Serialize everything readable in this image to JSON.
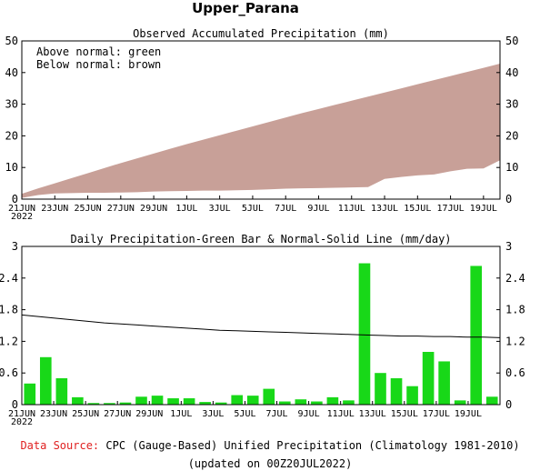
{
  "page": {
    "title": "Upper_Parana"
  },
  "colors": {
    "above_normal": "#18b818",
    "below_normal": "#c8a098",
    "bar": "#18d818",
    "normal_line": "#000000",
    "source_label": "#e02020"
  },
  "footer": {
    "source_label": "Data Source:",
    "source_text": "CPC (Gauge-Based) Unified Precipitation (Climatology 1981-2010)",
    "updated": "(updated on 00Z20JUL2022)"
  },
  "chart_data": [
    {
      "type": "area",
      "title": "Observed Accumulated Precipitation (mm)",
      "legend": [
        "Above normal: green",
        "Below normal: brown"
      ],
      "legend_position": "top-left",
      "ylim": [
        0,
        50
      ],
      "yticks": [
        0,
        10,
        20,
        30,
        40,
        50
      ],
      "x_tick_labels": [
        "21JUN",
        "23JUN",
        "25JUN",
        "27JUN",
        "29JUN",
        "1JUL",
        "3JUL",
        "5JUL",
        "7JUL",
        "9JUL",
        "11JUL",
        "13JUL",
        "15JUL",
        "17JUL",
        "19JUL"
      ],
      "x_year_label": "2022",
      "grid": false,
      "series": [
        {
          "name": "Normal",
          "values": [
            1.7,
            3.4,
            5.0,
            6.6,
            8.2,
            9.8,
            11.4,
            12.9,
            14.4,
            15.9,
            17.4,
            18.8,
            20.2,
            21.6,
            23.0,
            24.4,
            25.8,
            27.2,
            28.5,
            29.8,
            31.1,
            32.4,
            33.7,
            35.0,
            36.3,
            37.6,
            38.9,
            40.2,
            41.5,
            42.8
          ]
        },
        {
          "name": "Observed",
          "values": [
            0.4,
            1.3,
            1.8,
            1.9,
            2.0,
            2.0,
            2.1,
            2.2,
            2.4,
            2.5,
            2.6,
            2.7,
            2.7,
            2.8,
            2.9,
            3.1,
            3.3,
            3.4,
            3.5,
            3.6,
            3.7,
            3.8,
            6.4,
            7.0,
            7.5,
            7.8,
            8.8,
            9.6,
            9.7,
            12.3
          ]
        }
      ]
    },
    {
      "type": "bar",
      "title": "Daily Precipitation-Green Bar & Normal-Solid Line (mm/day)",
      "ylim": [
        0,
        3
      ],
      "yticks": [
        "0",
        "0.6",
        "1.2",
        "1.8",
        "2.4",
        "3"
      ],
      "x_tick_labels": [
        "21JUN",
        "23JUN",
        "25JUN",
        "27JUN",
        "29JUN",
        "1JUL",
        "3JUL",
        "5JUL",
        "7JUL",
        "9JUL",
        "11JUL",
        "13JUL",
        "15JUL",
        "17JUL",
        "19JUL"
      ],
      "x_year_label": "2022",
      "grid": false,
      "series": [
        {
          "name": "Daily",
          "values": [
            0.4,
            0.9,
            0.5,
            0.14,
            0.03,
            0.03,
            0.04,
            0.15,
            0.17,
            0.12,
            0.12,
            0.05,
            0.04,
            0.18,
            0.17,
            0.3,
            0.06,
            0.1,
            0.06,
            0.14,
            0.08,
            2.68,
            0.6,
            0.5,
            0.35,
            1.0,
            0.82,
            0.08,
            2.63,
            0.15
          ]
        },
        {
          "name": "Normal",
          "values": [
            1.7,
            1.67,
            1.64,
            1.61,
            1.58,
            1.55,
            1.53,
            1.51,
            1.49,
            1.47,
            1.45,
            1.43,
            1.41,
            1.4,
            1.39,
            1.38,
            1.37,
            1.36,
            1.35,
            1.34,
            1.33,
            1.32,
            1.31,
            1.3,
            1.3,
            1.29,
            1.29,
            1.28,
            1.28,
            1.27
          ]
        }
      ]
    }
  ]
}
